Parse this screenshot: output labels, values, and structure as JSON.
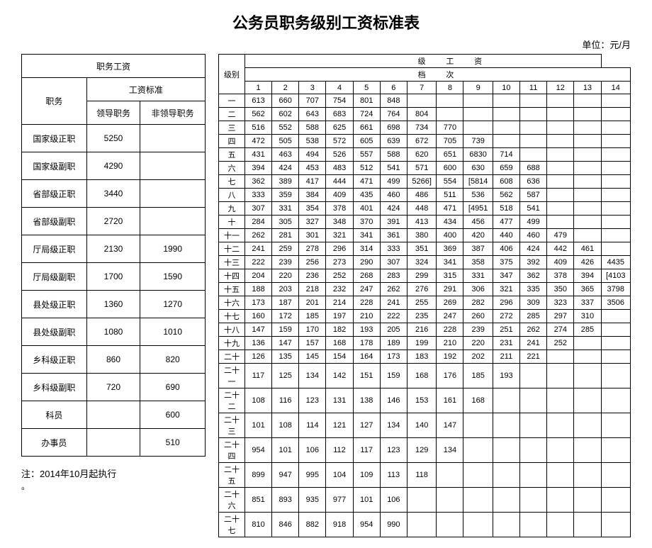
{
  "title": "公务员职务级别工资标准表",
  "unit": "单位：元/月",
  "note": "注：2014年10月起执行",
  "left": {
    "header1": "职务工资",
    "header2": "工资标准",
    "col_job": "职务",
    "col_lead": "领导职务",
    "col_nonlead": "非领导职务",
    "rows": [
      {
        "job": "国家级正职",
        "lead": "5250",
        "nonlead": ""
      },
      {
        "job": "国家级副职",
        "lead": "4290",
        "nonlead": ""
      },
      {
        "job": "省部级正职",
        "lead": "3440",
        "nonlead": ""
      },
      {
        "job": "省部级副职",
        "lead": "2720",
        "nonlead": ""
      },
      {
        "job": "厅局级正职",
        "lead": "2130",
        "nonlead": "1990"
      },
      {
        "job": "厅局级副职",
        "lead": "1700",
        "nonlead": "1590"
      },
      {
        "job": "县处级正职",
        "lead": "1360",
        "nonlead": "1270"
      },
      {
        "job": "县处级副职",
        "lead": "1080",
        "nonlead": "1010"
      },
      {
        "job": "乡科级正职",
        "lead": "860",
        "nonlead": "820"
      },
      {
        "job": "乡科级副职",
        "lead": "720",
        "nonlead": "690"
      },
      {
        "job": "科员",
        "lead": "",
        "nonlead": "600"
      },
      {
        "job": "办事员",
        "lead": "",
        "nonlead": "510"
      }
    ]
  },
  "right": {
    "hdr_ji": "级",
    "hdr_gong": "工",
    "hdr_zi": "资",
    "hdr_dang": "档",
    "hdr_ci": "次",
    "hdr_level": "级别",
    "cols": [
      "1",
      "2",
      "3",
      "4",
      "5",
      "6",
      "7",
      "8",
      "9",
      "10",
      "11",
      "12",
      "13",
      "14"
    ],
    "rows": [
      {
        "lv": "一",
        "v": [
          "613",
          "660",
          "707",
          "754",
          "801",
          "848",
          "",
          "",
          "",
          "",
          "",
          "",
          "",
          ""
        ]
      },
      {
        "lv": "二",
        "v": [
          "562",
          "602",
          "643",
          "683",
          "724",
          "764",
          "804",
          "",
          "",
          "",
          "",
          "",
          "",
          ""
        ]
      },
      {
        "lv": "三",
        "v": [
          "516",
          "552",
          "588",
          "625",
          "661",
          "698",
          "734",
          "770",
          "",
          "",
          "",
          "",
          "",
          ""
        ]
      },
      {
        "lv": "四",
        "v": [
          "472",
          "505",
          "538",
          "572",
          "605",
          "639",
          "672",
          "705",
          "739",
          "",
          "",
          "",
          "",
          ""
        ]
      },
      {
        "lv": "五",
        "v": [
          "431",
          "463",
          "494",
          "526",
          "557",
          "588",
          "620",
          "651",
          "6830",
          "714",
          "",
          "",
          "",
          ""
        ]
      },
      {
        "lv": "六",
        "v": [
          "394",
          "424",
          "453",
          "483",
          "512",
          "541",
          "571",
          "600",
          "630",
          "659",
          "688",
          "",
          "",
          ""
        ]
      },
      {
        "lv": "七",
        "v": [
          "362",
          "389",
          "417",
          "444",
          "471",
          "499",
          "5266]",
          "554",
          "[5814",
          "608",
          "636",
          "",
          "",
          ""
        ]
      },
      {
        "lv": "八",
        "v": [
          "333",
          "359",
          "384",
          "409",
          "435",
          "460",
          "486",
          "511",
          "536",
          "562",
          "587",
          "",
          "",
          ""
        ]
      },
      {
        "lv": "九",
        "v": [
          "307",
          "331",
          "354",
          "378",
          "401",
          "424",
          "448",
          "471",
          "[4951",
          "518",
          "541",
          "",
          "",
          ""
        ]
      },
      {
        "lv": "十",
        "v": [
          "284",
          "305",
          "327",
          "348",
          "370",
          "391",
          "413",
          "434",
          "456",
          "477",
          "499",
          "",
          "",
          ""
        ]
      },
      {
        "lv": "十一",
        "v": [
          "262",
          "281",
          "301",
          "321",
          "341",
          "361",
          "380",
          "400",
          "420",
          "440",
          "460",
          "479",
          "",
          ""
        ]
      },
      {
        "lv": "十二",
        "v": [
          "241",
          "259",
          "278",
          "296",
          "314",
          "333",
          "351",
          "369",
          "387",
          "406",
          "424",
          "442",
          "461",
          ""
        ]
      },
      {
        "lv": "十三",
        "v": [
          "222",
          "239",
          "256",
          "273",
          "290",
          "307",
          "324",
          "341",
          "358",
          "375",
          "392",
          "409",
          "426",
          "4435"
        ]
      },
      {
        "lv": "十四",
        "v": [
          "204",
          "220",
          "236",
          "252",
          "268",
          "283",
          "299",
          "315",
          "331",
          "347",
          "362",
          "378",
          "394",
          "[4103"
        ]
      },
      {
        "lv": "十五",
        "v": [
          "188",
          "203",
          "218",
          "232",
          "247",
          "262",
          "276",
          "291",
          "306",
          "321",
          "335",
          "350",
          "365",
          "3798"
        ]
      },
      {
        "lv": "十六",
        "v": [
          "173",
          "187",
          "201",
          "214",
          "228",
          "241",
          "255",
          "269",
          "282",
          "296",
          "309",
          "323",
          "337",
          "3506"
        ]
      },
      {
        "lv": "十七",
        "v": [
          "160",
          "172",
          "185",
          "197",
          "210",
          "222",
          "235",
          "247",
          "260",
          "272",
          "285",
          "297",
          "310",
          ""
        ]
      },
      {
        "lv": "十八",
        "v": [
          "147",
          "159",
          "170",
          "182",
          "193",
          "205",
          "216",
          "228",
          "239",
          "251",
          "262",
          "274",
          "285",
          ""
        ]
      },
      {
        "lv": "十九",
        "v": [
          "136",
          "147",
          "157",
          "168",
          "178",
          "189",
          "199",
          "210",
          "220",
          "231",
          "241",
          "252",
          "",
          ""
        ]
      },
      {
        "lv": "二十",
        "v": [
          "126",
          "135",
          "145",
          "154",
          "164",
          "173",
          "183",
          "192",
          "202",
          "211",
          "221",
          "",
          "",
          ""
        ]
      },
      {
        "lv": "二十一",
        "v": [
          "117",
          "125",
          "134",
          "142",
          "151",
          "159",
          "168",
          "176",
          "185",
          "193",
          "",
          "",
          "",
          ""
        ]
      },
      {
        "lv": "二十二",
        "v": [
          "108",
          "116",
          "123",
          "131",
          "138",
          "146",
          "153",
          "161",
          "168",
          "",
          "",
          "",
          "",
          ""
        ]
      },
      {
        "lv": "二十三",
        "v": [
          "101",
          "108",
          "114",
          "121",
          "127",
          "134",
          "140",
          "147",
          "",
          "",
          "",
          "",
          "",
          ""
        ]
      },
      {
        "lv": "二十四",
        "v": [
          "954",
          "101",
          "106",
          "112",
          "117",
          "123",
          "129",
          "134",
          "",
          "",
          "",
          "",
          "",
          ""
        ]
      },
      {
        "lv": "二十五",
        "v": [
          "899",
          "947",
          "995",
          "104",
          "109",
          "113",
          "118",
          "",
          "",
          "",
          "",
          "",
          "",
          ""
        ]
      },
      {
        "lv": "二十六",
        "v": [
          "851",
          "893",
          "935",
          "977",
          "101",
          "106",
          "",
          "",
          "",
          "",
          "",
          "",
          "",
          ""
        ]
      },
      {
        "lv": "二十七",
        "v": [
          "810",
          "846",
          "882",
          "918",
          "954",
          "990",
          "",
          "",
          "",
          "",
          "",
          "",
          "",
          ""
        ]
      }
    ]
  }
}
